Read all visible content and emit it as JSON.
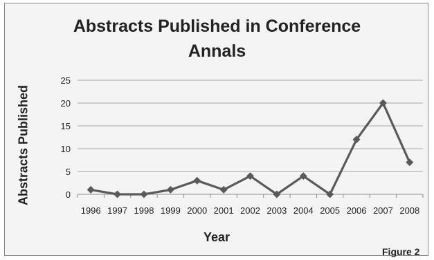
{
  "chart_data": {
    "type": "line",
    "title_lines": [
      "Abstracts Published in Conference",
      "Annals"
    ],
    "xlabel": "Year",
    "ylabel": "Abstracts Published",
    "categories": [
      "1996",
      "1997",
      "1998",
      "1999",
      "2000",
      "2001",
      "2002",
      "2003",
      "2004",
      "2005",
      "2006",
      "2007",
      "2008"
    ],
    "series": [
      {
        "values": [
          1,
          0,
          0,
          1,
          3,
          1,
          4,
          0,
          4,
          0,
          12,
          20,
          7
        ],
        "color": "#5a5a5a",
        "marker": "diamond"
      }
    ],
    "ylim": [
      0,
      25
    ],
    "yticks": [
      0,
      5,
      10,
      15,
      20,
      25
    ],
    "grid": true,
    "legend": "none"
  },
  "note": "Figure 2"
}
